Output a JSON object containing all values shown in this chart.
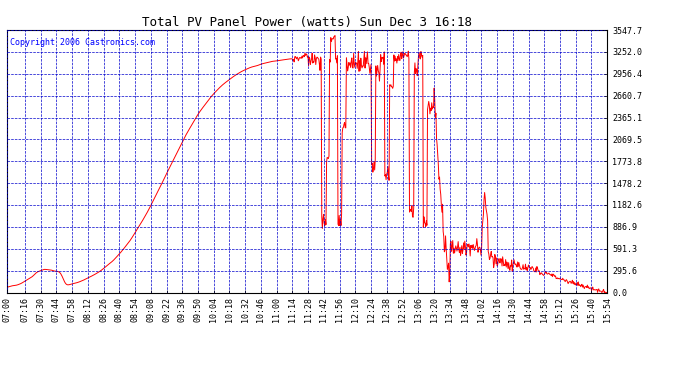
{
  "title": "Total PV Panel Power (watts) Sun Dec 3 16:18",
  "copyright": "Copyright 2006 Castronics.com",
  "background_color": "#FFFFFF",
  "plot_bg_color": "#FFFFFF",
  "grid_color": "#0000CC",
  "line_color": "#FF0000",
  "y_ticks": [
    0.0,
    295.6,
    591.3,
    886.9,
    1182.6,
    1478.2,
    1773.8,
    2069.5,
    2365.1,
    2660.7,
    2956.4,
    3252.0,
    3547.7
  ],
  "ylim": [
    0.0,
    3547.7
  ],
  "x_tick_labels": [
    "07:00",
    "07:16",
    "07:30",
    "07:44",
    "07:58",
    "08:12",
    "08:26",
    "08:40",
    "08:54",
    "09:08",
    "09:22",
    "09:36",
    "09:50",
    "10:04",
    "10:18",
    "10:32",
    "10:46",
    "11:00",
    "11:14",
    "11:28",
    "11:42",
    "11:56",
    "12:10",
    "12:24",
    "12:38",
    "12:52",
    "13:06",
    "13:20",
    "13:34",
    "13:48",
    "14:02",
    "14:16",
    "14:30",
    "14:44",
    "14:58",
    "15:12",
    "15:26",
    "15:40",
    "15:54"
  ],
  "title_fontsize": 9,
  "tick_fontsize": 6,
  "copyright_fontsize": 6
}
